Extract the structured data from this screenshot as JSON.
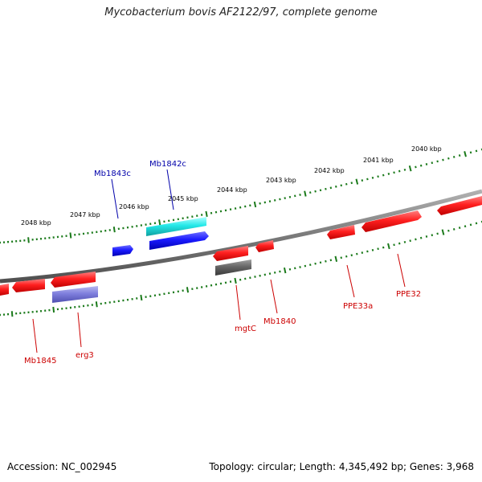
{
  "title": "Mycobacterium bovis AF2122/97, complete genome",
  "footer": {
    "accession": "Accession: NC_002945",
    "stats": "Topology: circular; Length: 4,345,492 bp; Genes: 3,968"
  },
  "colors": {
    "backbone": "#808080",
    "ticks": "#1b7a1b",
    "forward_label": "#0000aa",
    "reverse_label": "#cc0000",
    "red_gene": "#ff1a1a",
    "blue_gene": "#1a1aff",
    "cyan_gene": "#22e8e8",
    "purple_gene": "#7f7fdd",
    "gray_gene": "#666666"
  },
  "scale_labels": [
    "2048 kbp",
    "2047 kbp",
    "2046 kbp",
    "2045 kbp",
    "2044 kbp",
    "2043 kbp",
    "2042 kbp",
    "2041 kbp",
    "2040 kbp"
  ],
  "gene_labels": [
    "Mb1843c",
    "Mb1842c",
    "Mb1845",
    "erg3",
    "mgtC",
    "Mb1840",
    "PPE33a",
    "PPE32"
  ]
}
